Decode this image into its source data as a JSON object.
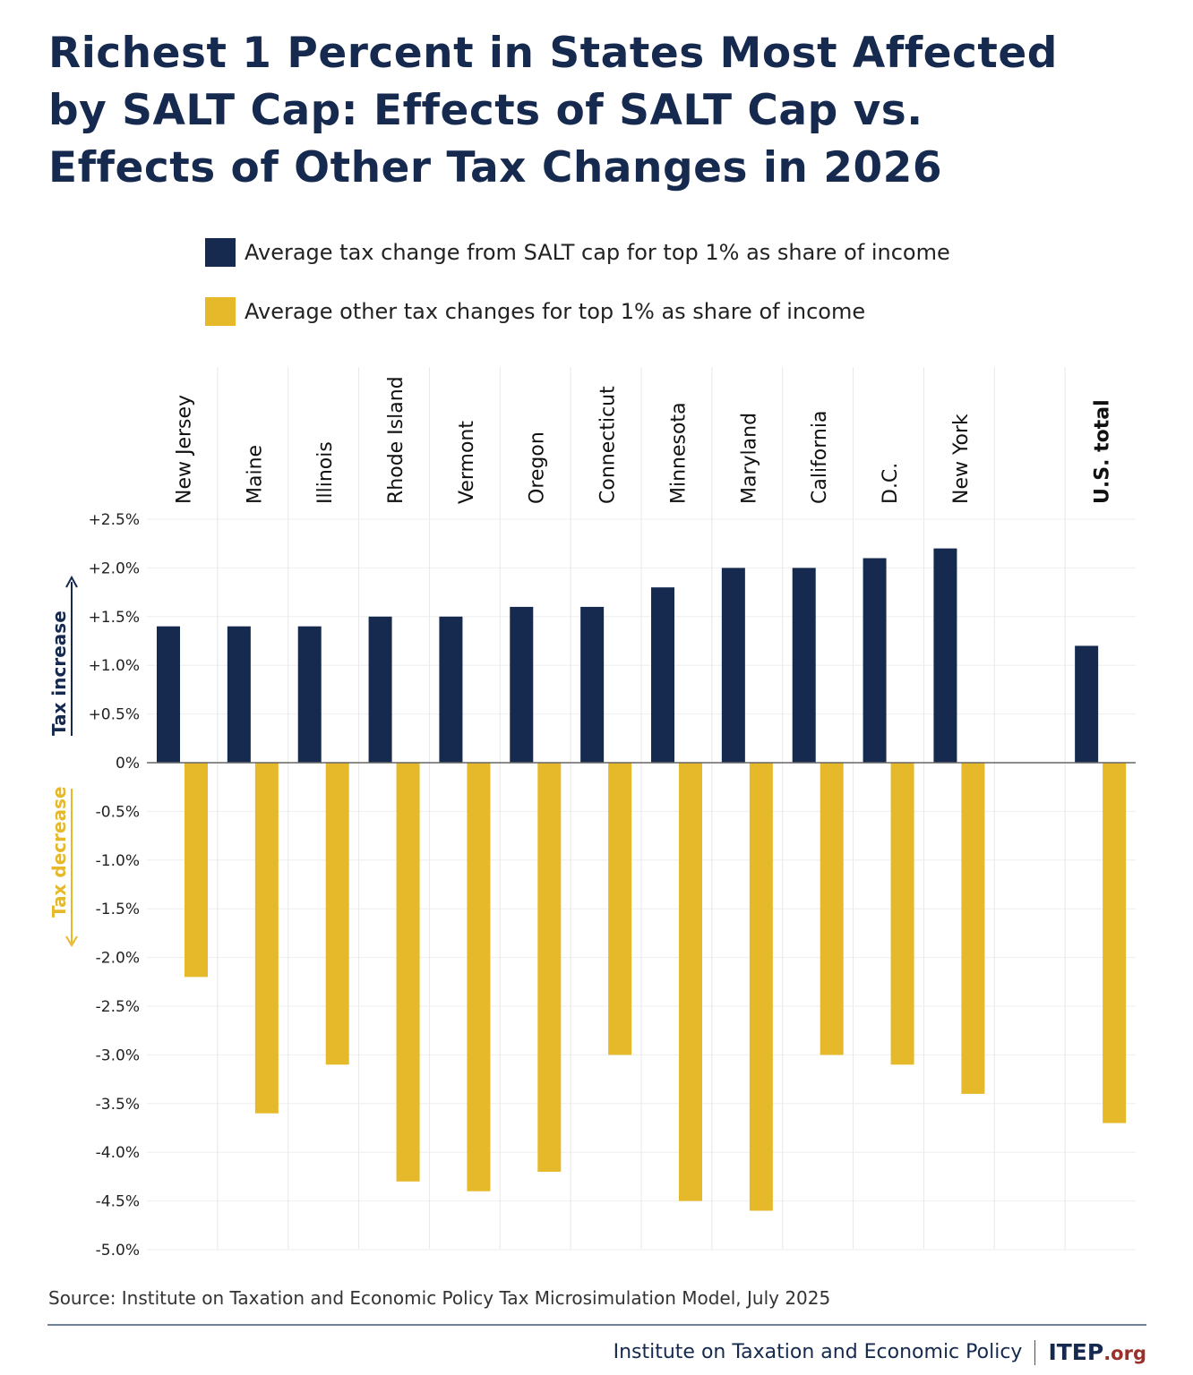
{
  "title": "Richest 1 Percent in States Most Affected by SALT Cap: Effects of SALT Cap vs. Effects of Other Tax Changes in 2026",
  "source": "Source: Institute on Taxation and Economic Policy Tax Microsimulation Model, July 2025",
  "footer": {
    "org_name": "Institute on Taxation and Economic Policy",
    "logo_main": "ITEP",
    "logo_suffix": ".org"
  },
  "colors": {
    "salt": "#152a4e",
    "other": "#e6b92a",
    "title": "#152a4e",
    "logo_accent": "#9b2f2a"
  },
  "chart_data": {
    "type": "bar",
    "categories": [
      "New Jersey",
      "Maine",
      "Illinois",
      "Rhode Island",
      "Vermont",
      "Oregon",
      "Connecticut",
      "Minnesota",
      "Maryland",
      "California",
      "D.C.",
      "New York",
      "",
      "U.S. total"
    ],
    "series": [
      {
        "name": "Average tax change from SALT cap for top 1% as share of income",
        "color": "#152a4e",
        "values": [
          1.4,
          1.4,
          1.4,
          1.5,
          1.5,
          1.6,
          1.6,
          1.8,
          2.0,
          2.0,
          2.1,
          2.2,
          null,
          1.2
        ]
      },
      {
        "name": "Average other tax changes for top 1% as share of income",
        "color": "#e6b92a",
        "values": [
          -2.2,
          -3.6,
          -3.1,
          -4.3,
          -4.4,
          -4.2,
          -3.0,
          -4.5,
          -4.6,
          -3.0,
          -3.1,
          -3.4,
          null,
          -3.7
        ]
      }
    ],
    "ylim": [
      -5.0,
      2.5
    ],
    "yticks": [
      "+2.5%",
      "+2.0%",
      "+1.5%",
      "+1.0%",
      "+0.5%",
      "0%",
      "-0.5%",
      "-1.0%",
      "-1.5%",
      "-2.0%",
      "-2.5%",
      "-3.0%",
      "-3.5%",
      "-4.0%",
      "-4.5%",
      "-5.0%"
    ],
    "ytick_values": [
      2.5,
      2.0,
      1.5,
      1.0,
      0.5,
      0,
      -0.5,
      -1.0,
      -1.5,
      -2.0,
      -2.5,
      -3.0,
      -3.5,
      -4.0,
      -4.5,
      -5.0
    ],
    "annotations": {
      "increase": "Tax increase",
      "decrease": "Tax decrease"
    },
    "grid": true,
    "legend_position": "top"
  }
}
